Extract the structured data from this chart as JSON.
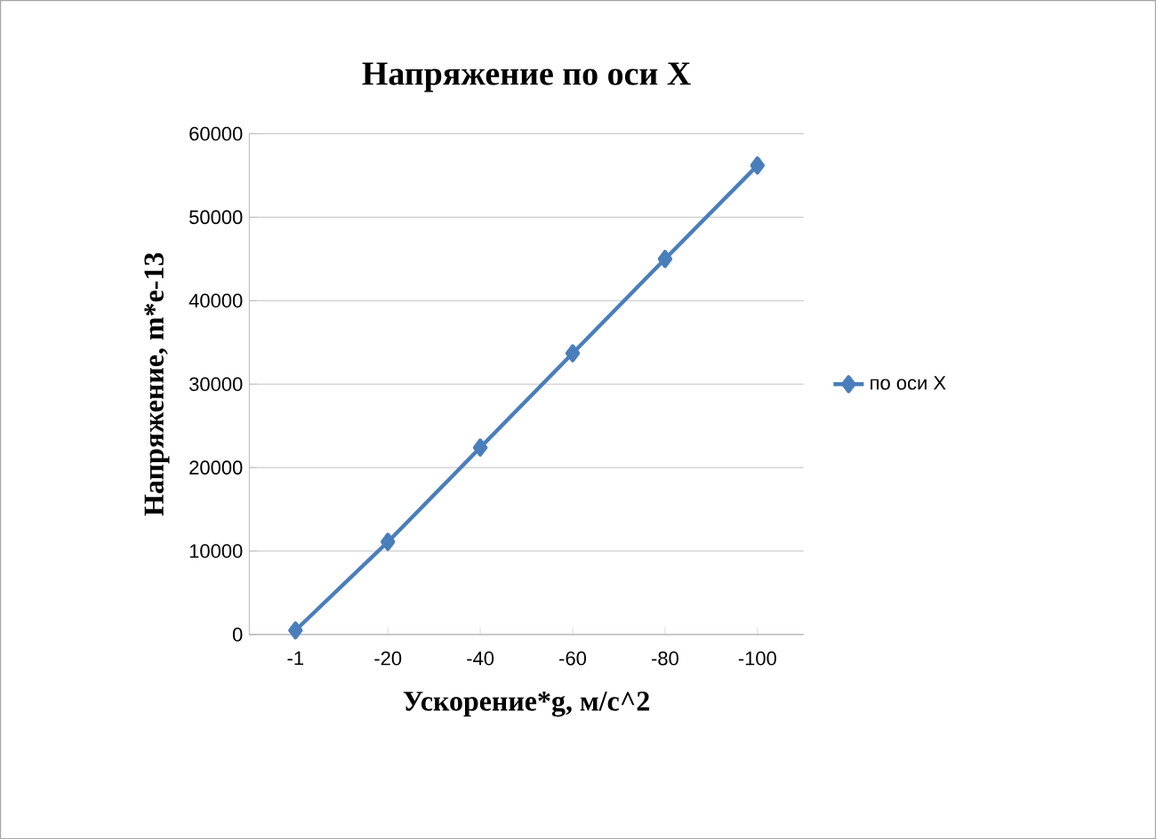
{
  "chart_data": {
    "type": "line",
    "title": "Напряжение по оси X",
    "xlabel": "Ускорение*g, м/с^2",
    "ylabel": "Напряжение, m*e-13",
    "categories": [
      "-1",
      "-20",
      "-40",
      "-60",
      "-80",
      "-100"
    ],
    "series": [
      {
        "name": "по оси X",
        "color": "#4a7ebb",
        "values": [
          500,
          11100,
          22400,
          33700,
          45000,
          56200
        ]
      }
    ],
    "ylim": [
      0,
      60000
    ],
    "yticks": [
      0,
      10000,
      20000,
      30000,
      40000,
      50000,
      60000
    ],
    "grid": "y",
    "legend": "right",
    "marker": "diamond",
    "line_style": "solid"
  }
}
